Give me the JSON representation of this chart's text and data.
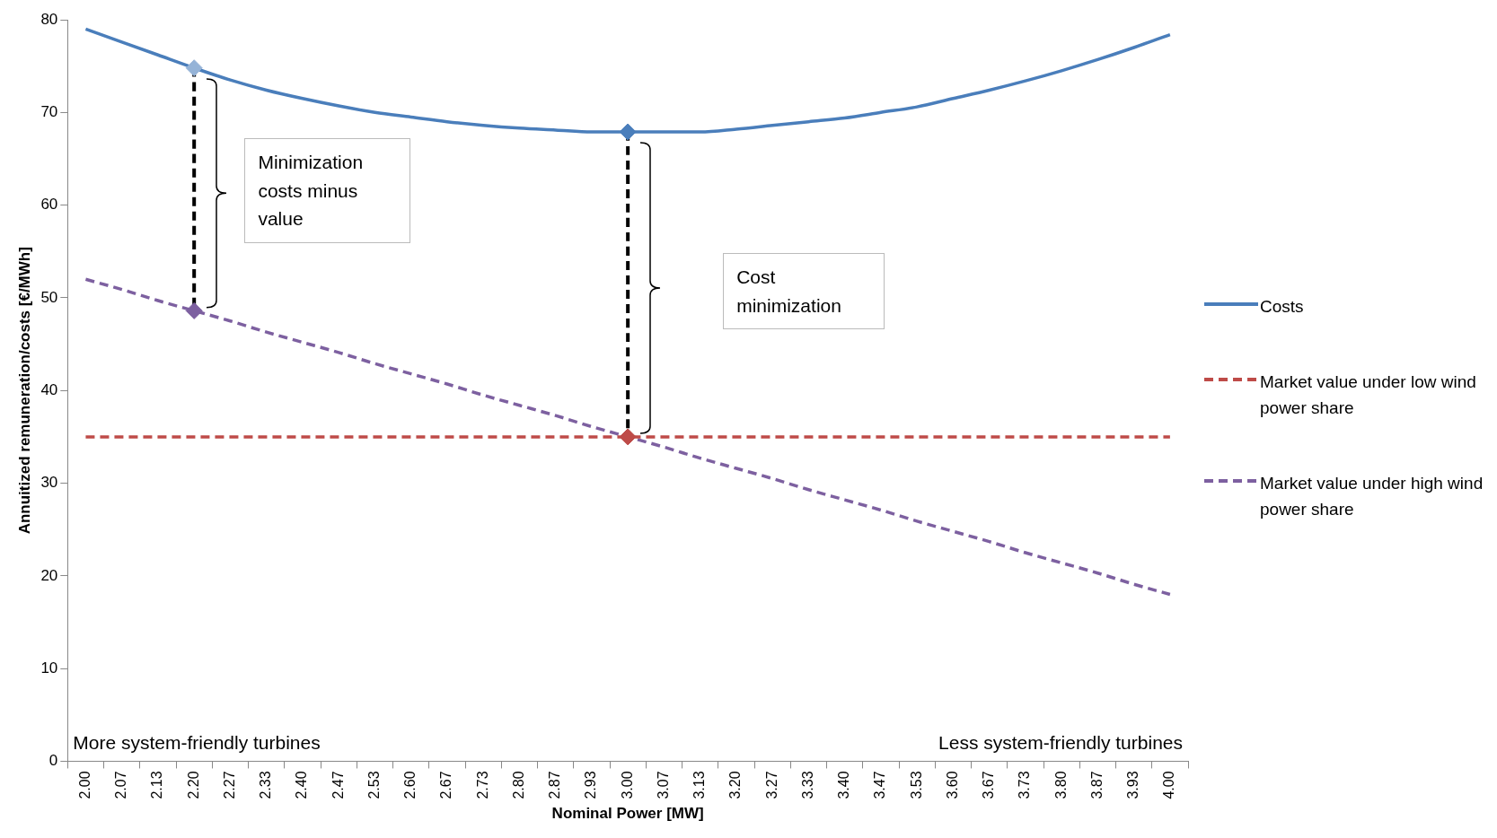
{
  "chart_data": {
    "type": "line",
    "xlabel": "Nominal Power [MW]",
    "ylabel": "Annuitized remuneration/costs [€/MWh]",
    "categories": [
      "2.00",
      "2.07",
      "2.13",
      "2.20",
      "2.27",
      "2.33",
      "2.40",
      "2.47",
      "2.53",
      "2.60",
      "2.67",
      "2.73",
      "2.80",
      "2.87",
      "2.93",
      "3.00",
      "3.07",
      "3.13",
      "3.20",
      "3.27",
      "3.33",
      "3.40",
      "3.47",
      "3.53",
      "3.60",
      "3.67",
      "3.73",
      "3.80",
      "3.87",
      "3.93",
      "4.00"
    ],
    "series": [
      {
        "name": "Costs",
        "color": "#4a7ebb",
        "line_style": "solid",
        "values": [
          79.0,
          77.6,
          76.2,
          74.8,
          73.5,
          72.4,
          71.5,
          70.7,
          70.0,
          69.5,
          69.0,
          68.6,
          68.3,
          68.1,
          67.9,
          67.9,
          67.9,
          67.9,
          68.2,
          68.6,
          69.0,
          69.4,
          70.0,
          70.6,
          71.5,
          72.4,
          73.4,
          74.5,
          75.7,
          77.0,
          78.4
        ]
      },
      {
        "name": "Market value under low wind power share",
        "color": "#be4b48",
        "line_style": "dashed",
        "values": [
          35,
          35,
          35,
          35,
          35,
          35,
          35,
          35,
          35,
          35,
          35,
          35,
          35,
          35,
          35,
          35,
          35,
          35,
          35,
          35,
          35,
          35,
          35,
          35,
          35,
          35,
          35,
          35,
          35,
          35,
          35
        ]
      },
      {
        "name": "Market value under high wind power share",
        "color": "#7d60a0",
        "line_style": "dashed",
        "values": [
          52.0,
          50.9,
          49.7,
          48.6,
          47.5,
          46.3,
          45.2,
          44.1,
          42.9,
          41.8,
          40.7,
          39.5,
          38.4,
          37.3,
          36.1,
          35.0,
          33.9,
          32.7,
          31.6,
          30.5,
          29.3,
          28.2,
          27.1,
          25.9,
          24.8,
          23.7,
          22.5,
          21.4,
          20.3,
          19.1,
          18.0
        ]
      },
      {
        "type": "line",
        "color": "#000000",
        "line_style": "dashed",
        "x": [
          "2.20",
          "2.20"
        ],
        "values": [
          74.8,
          48.6
        ]
      },
      {
        "type": "line",
        "color": "#000000",
        "line_style": "dashed",
        "x": [
          "3.00",
          "3.00"
        ],
        "values": [
          67.9,
          35.0
        ]
      },
      {
        "type": "scatter",
        "color": "#95b3d7",
        "marker": "diamond",
        "x": [
          "2.20"
        ],
        "values": [
          74.8
        ]
      },
      {
        "type": "scatter",
        "color": "#7d60a0",
        "marker": "diamond",
        "x": [
          "2.20"
        ],
        "values": [
          48.6
        ]
      },
      {
        "type": "scatter",
        "color": "#4a7ebb",
        "marker": "diamond",
        "x": [
          "3.00"
        ],
        "values": [
          67.9
        ]
      },
      {
        "type": "scatter",
        "color": "#be4b48",
        "marker": "diamond",
        "x": [
          "3.00"
        ],
        "values": [
          35.0
        ]
      }
    ],
    "annotations": [
      "Minimization costs minus value",
      "Cost minimization",
      "More system-friendly turbines",
      "Less system-friendly turbines"
    ],
    "ylim": [
      0,
      80
    ],
    "yticks": [
      0,
      10,
      20,
      30,
      40,
      50,
      60,
      70,
      80
    ],
    "grid": false,
    "legend": "right",
    "marker": "none"
  }
}
